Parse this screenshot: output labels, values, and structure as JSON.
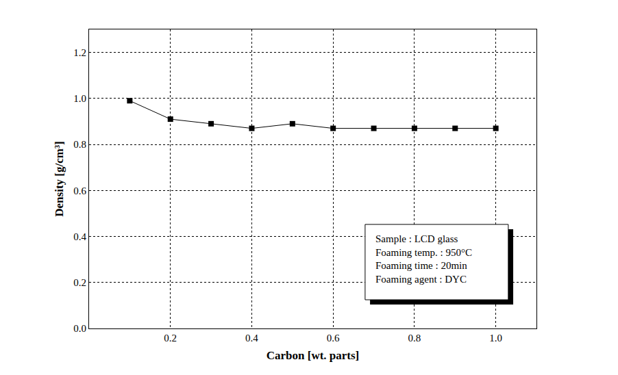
{
  "chart_data": {
    "type": "line",
    "x_label": "Carbon [wt. parts]",
    "y_label": "Density [g/cm³]",
    "x": [
      0.1,
      0.2,
      0.3,
      0.4,
      0.5,
      0.6,
      0.7,
      0.8,
      0.9,
      1.0
    ],
    "values": [
      0.99,
      0.91,
      0.89,
      0.87,
      0.89,
      0.87,
      0.87,
      0.87,
      0.87,
      0.87
    ],
    "color": "#000000",
    "marker": "square",
    "line_style": "solid",
    "xlim": [
      0,
      1.1
    ],
    "xticks": [
      0.2,
      0.4,
      0.6,
      0.8,
      {
        "value": 1.0,
        "label": "1.0"
      }
    ],
    "ylim": [
      0,
      1.3
    ],
    "yticks": [
      {
        "value": 0,
        "label": "0.0"
      },
      0.2,
      0.4,
      0.6,
      0.8,
      {
        "value": 1.0,
        "label": "1.0"
      },
      1.2
    ],
    "grid": true,
    "annotations": [
      "Sample : LCD glass",
      "Foaming temp. : 950°C",
      "Foaming time : 20min",
      "Foaming agent : DYC"
    ]
  }
}
